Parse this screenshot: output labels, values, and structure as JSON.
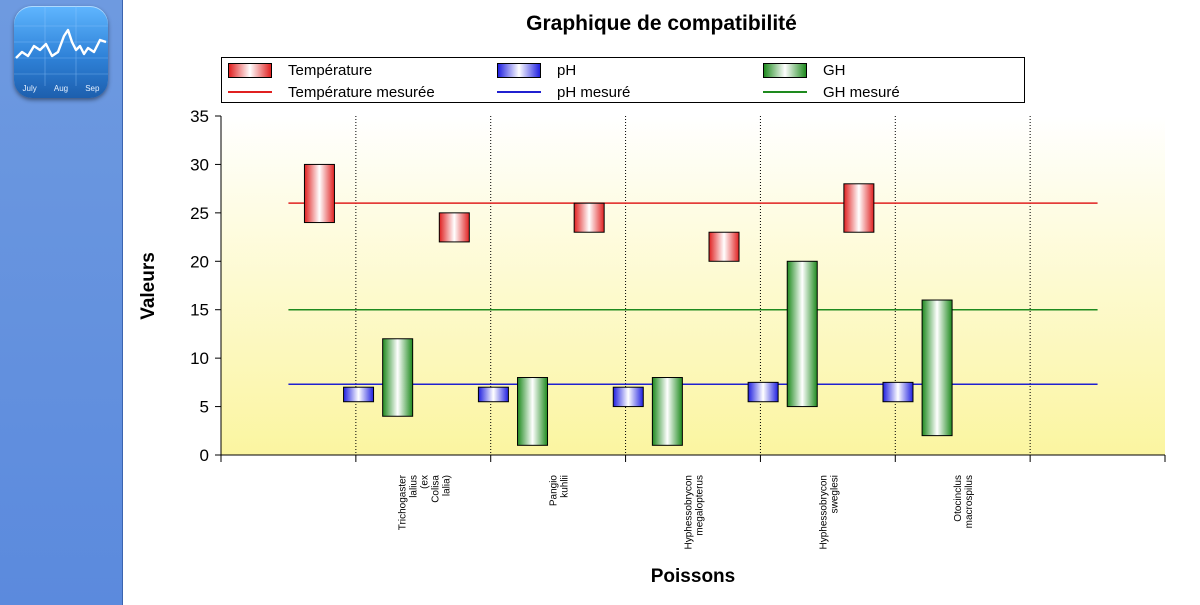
{
  "app_icon": {
    "icon_name": "stocks-chart-icon",
    "months": [
      "July",
      "Aug",
      "Sep"
    ]
  },
  "chart_data": {
    "type": "bar",
    "title": "Graphique de compatibilité",
    "xlabel": "Poissons",
    "ylabel": "Valeurs",
    "ylim": [
      0,
      35
    ],
    "yticks": [
      0,
      5,
      10,
      15,
      20,
      25,
      30,
      35
    ],
    "categories": [
      "",
      "Trichogaster\nlalius\n(ex\nColisa\nlalia)",
      "Pangio\nkuhlii",
      "Hyphessobrycon\nmegalopterus",
      "Hyphessobrycon\nsweglesi",
      "Otocinclus\nmacrospilus",
      ""
    ],
    "series": [
      {
        "name": "Température",
        "color": "#e02020",
        "type": "floating-bar",
        "ranges": [
          null,
          [
            24,
            30
          ],
          [
            22,
            25
          ],
          [
            23,
            26
          ],
          [
            20,
            23
          ],
          [
            23,
            28
          ],
          null
        ]
      },
      {
        "name": "pH",
        "color": "#2020e0",
        "type": "floating-bar",
        "ranges": [
          null,
          [
            5.5,
            7
          ],
          [
            5.5,
            7
          ],
          [
            5,
            7
          ],
          [
            5.5,
            7.5
          ],
          [
            5.5,
            7.5
          ],
          null
        ]
      },
      {
        "name": "GH",
        "color": "#1e8a1e",
        "type": "floating-bar",
        "ranges": [
          null,
          [
            4,
            12
          ],
          [
            1,
            8
          ],
          [
            1,
            8
          ],
          [
            5,
            20
          ],
          [
            2,
            16
          ],
          null
        ]
      }
    ],
    "reference_lines": [
      {
        "name": "Température mesurée",
        "value": 26,
        "color": "#e02020"
      },
      {
        "name": "pH mesuré",
        "value": 7.3,
        "color": "#2020d0"
      },
      {
        "name": "GH mesuré",
        "value": 15,
        "color": "#1e8a1e"
      }
    ],
    "legend_position": "top",
    "grid": "vertical dotted lines between categories"
  }
}
